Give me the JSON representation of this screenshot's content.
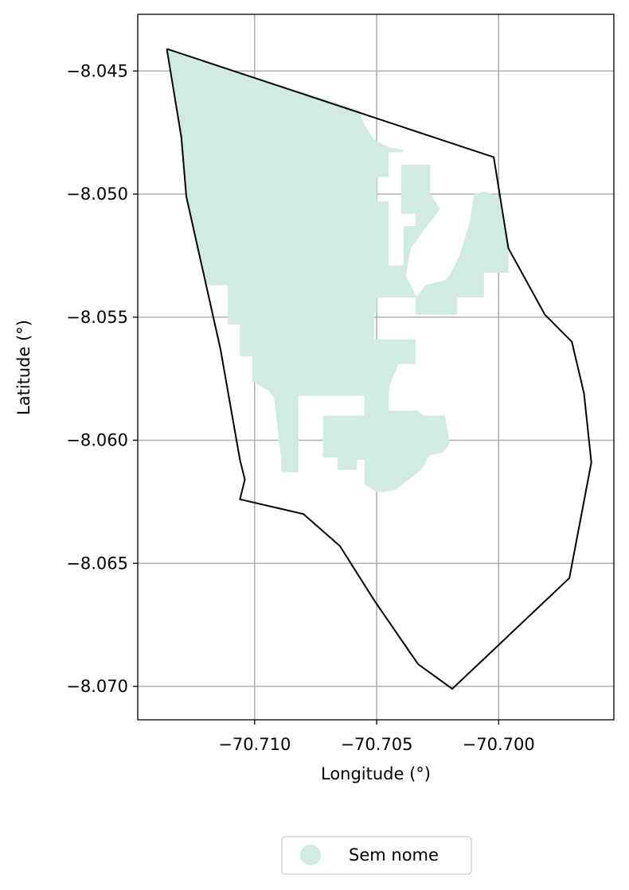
{
  "chart_data": {
    "type": "map",
    "xlabel": "Longitude (°)",
    "ylabel": "Latitude (°)",
    "xlim": [
      -70.7145,
      -70.705
    ],
    "ylim": [
      -8.0714,
      -8.0428
    ],
    "xticks": [
      -70.71,
      -70.705,
      -70.7
    ],
    "xtick_labels": [
      "−70.710",
      "−70.705",
      "−70.700"
    ],
    "yticks": [
      -8.045,
      -8.05,
      -8.055,
      -8.06,
      -8.065,
      -8.07
    ],
    "ytick_labels": [
      "−8.045",
      "−8.050",
      "−8.055",
      "−8.060",
      "−8.065",
      "−8.070"
    ],
    "grid": true,
    "fill_color": "#d0ebe0",
    "boundary_color": "#000000",
    "legend": {
      "placement": "bottom-center",
      "entries": [
        {
          "label": "Sem nome",
          "color": "#d0ebe0"
        }
      ]
    },
    "boundary": [
      [
        -70.7136,
        -8.0441
      ],
      [
        -70.7002,
        -8.0485
      ],
      [
        -70.6996,
        -8.0522
      ],
      [
        -70.6981,
        -8.0549
      ],
      [
        -70.697,
        -8.056
      ],
      [
        -70.6965,
        -8.0581
      ],
      [
        -70.6962,
        -8.0609
      ],
      [
        -70.6971,
        -8.0656
      ],
      [
        -70.7019,
        -8.0701
      ],
      [
        -70.7033,
        -8.0691
      ],
      [
        -70.7051,
        -8.0665
      ],
      [
        -70.7065,
        -8.0643
      ],
      [
        -70.708,
        -8.063
      ],
      [
        -70.7106,
        -8.0624
      ],
      [
        -70.7104,
        -8.0616
      ],
      [
        -70.7106,
        -8.0608
      ],
      [
        -70.7114,
        -8.0563
      ],
      [
        -70.7128,
        -8.0501
      ],
      [
        -70.713,
        -8.0477
      ],
      [
        -70.7136,
        -8.0441
      ]
    ],
    "features": [
      {
        "name": "Sem nome",
        "polygons": [
          [
            [
              -70.7136,
              -8.0441
            ],
            [
              -70.7057,
              -8.0466
            ],
            [
              -70.7055,
              -8.0472
            ],
            [
              -70.7051,
              -8.0478
            ],
            [
              -70.7045,
              -8.0481
            ],
            [
              -70.7039,
              -8.0482
            ],
            [
              -70.7039,
              -8.0483
            ],
            [
              -70.7045,
              -8.0483
            ],
            [
              -70.7045,
              -8.0493
            ],
            [
              -70.705,
              -8.0493
            ],
            [
              -70.705,
              -8.0503
            ],
            [
              -70.7045,
              -8.0503
            ],
            [
              -70.7045,
              -8.0529
            ],
            [
              -70.7039,
              -8.0529
            ],
            [
              -70.7039,
              -8.0513
            ],
            [
              -70.7034,
              -8.0513
            ],
            [
              -70.7034,
              -8.0508
            ],
            [
              -70.704,
              -8.0508
            ],
            [
              -70.704,
              -8.0488
            ],
            [
              -70.7028,
              -8.0488
            ],
            [
              -70.7028,
              -8.05
            ],
            [
              -70.7024,
              -8.0506
            ],
            [
              -70.703,
              -8.0514
            ],
            [
              -70.7036,
              -8.0522
            ],
            [
              -70.7038,
              -8.0533
            ],
            [
              -70.7034,
              -8.0541
            ],
            [
              -70.7033,
              -8.0542
            ],
            [
              -70.705,
              -8.0542
            ],
            [
              -70.705,
              -8.0548
            ],
            [
              -70.7051,
              -8.0548
            ],
            [
              -70.7051,
              -8.0559
            ],
            [
              -70.7034,
              -8.0559
            ],
            [
              -70.7034,
              -8.0569
            ],
            [
              -70.7041,
              -8.0569
            ],
            [
              -70.7044,
              -8.0576
            ],
            [
              -70.7045,
              -8.058
            ],
            [
              -70.7045,
              -8.0588
            ],
            [
              -70.7034,
              -8.0588
            ],
            [
              -70.7033,
              -8.0588
            ],
            [
              -70.7031,
              -8.059
            ],
            [
              -70.7022,
              -8.059
            ],
            [
              -70.702,
              -8.0601
            ],
            [
              -70.7021,
              -8.0603
            ],
            [
              -70.7023,
              -8.0605
            ],
            [
              -70.7028,
              -8.0606
            ],
            [
              -70.7029,
              -8.0607
            ],
            [
              -70.7031,
              -8.0611
            ],
            [
              -70.7033,
              -8.0613
            ],
            [
              -70.7042,
              -8.062
            ],
            [
              -70.7047,
              -8.0621
            ],
            [
              -70.705,
              -8.0621
            ],
            [
              -70.7055,
              -8.0618
            ],
            [
              -70.7055,
              -8.0608
            ],
            [
              -70.7058,
              -8.0608
            ],
            [
              -70.7058,
              -8.0612
            ],
            [
              -70.7066,
              -8.0612
            ],
            [
              -70.7066,
              -8.0607
            ],
            [
              -70.7072,
              -8.0607
            ],
            [
              -70.7072,
              -8.059
            ],
            [
              -70.7055,
              -8.059
            ],
            [
              -70.7055,
              -8.0584
            ],
            [
              -70.7055,
              -8.0582
            ],
            [
              -70.7072,
              -8.0582
            ],
            [
              -70.7082,
              -8.0582
            ],
            [
              -70.7082,
              -8.0613
            ],
            [
              -70.7089,
              -8.0613
            ],
            [
              -70.7089,
              -8.0608
            ],
            [
              -70.709,
              -8.06
            ],
            [
              -70.7092,
              -8.0583
            ],
            [
              -70.7094,
              -8.058
            ],
            [
              -70.7096,
              -8.0579
            ],
            [
              -70.7101,
              -8.0576
            ],
            [
              -70.7101,
              -8.0566
            ],
            [
              -70.7106,
              -8.0566
            ],
            [
              -70.7106,
              -8.0553
            ],
            [
              -70.7111,
              -8.0553
            ],
            [
              -70.7111,
              -8.0537
            ],
            [
              -70.712,
              -8.0537
            ],
            [
              -70.7128,
              -8.0501
            ],
            [
              -70.713,
              -8.0477
            ],
            [
              -70.7136,
              -8.0441
            ]
          ],
          [
            [
              -70.702,
              -8.0533
            ],
            [
              -70.7016,
              -8.0525
            ],
            [
              -70.7012,
              -8.0512
            ],
            [
              -70.701,
              -8.05
            ],
            [
              -70.7006,
              -8.0499
            ],
            [
              -70.7,
              -8.0501
            ],
            [
              -70.6996,
              -8.0522
            ],
            [
              -70.6996,
              -8.0532
            ],
            [
              -70.7006,
              -8.0532
            ],
            [
              -70.7006,
              -8.0542
            ],
            [
              -70.7017,
              -8.0542
            ],
            [
              -70.7017,
              -8.0549
            ],
            [
              -70.7034,
              -8.0549
            ],
            [
              -70.7034,
              -8.0542
            ],
            [
              -70.7033,
              -8.0541
            ],
            [
              -70.703,
              -8.0537
            ],
            [
              -70.7026,
              -8.0536
            ],
            [
              -70.7022,
              -8.0535
            ],
            [
              -70.702,
              -8.0533
            ]
          ]
        ]
      }
    ]
  }
}
